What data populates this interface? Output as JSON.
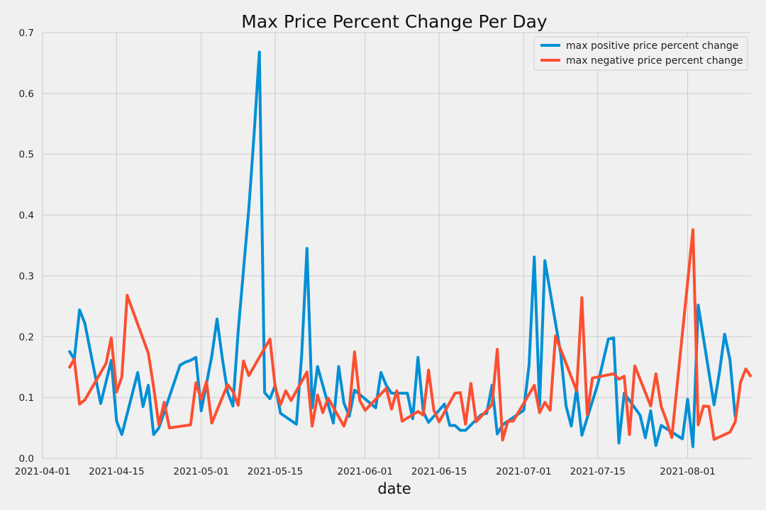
{
  "chart_data": {
    "type": "line",
    "title": "Max Price Percent Change Per Day",
    "xlabel": "date",
    "ylabel": "",
    "xlim": [
      "2021-04-01",
      "2021-08-13"
    ],
    "ylim": [
      0,
      0.7
    ],
    "x_ticks": [
      "2021-04-01",
      "2021-04-15",
      "2021-05-01",
      "2021-05-15",
      "2021-06-01",
      "2021-06-15",
      "2021-07-01",
      "2021-07-15",
      "2021-08-01"
    ],
    "y_ticks": [
      0.0,
      0.1,
      0.2,
      0.3,
      0.4,
      0.5,
      0.6,
      0.7
    ],
    "y_tick_labels": [
      "0.0",
      "0.1",
      "0.2",
      "0.3",
      "0.4",
      "0.5",
      "0.6",
      "0.7"
    ],
    "grid": true,
    "legend_position": "top-right",
    "series": [
      {
        "name": "max positive price percent change",
        "color": "#008fd5",
        "points": [
          [
            "2021-04-06",
            0.177
          ],
          [
            "2021-04-07",
            0.163
          ],
          [
            "2021-04-08",
            0.244
          ],
          [
            "2021-04-09",
            0.222
          ],
          [
            "2021-04-12",
            0.09
          ],
          [
            "2021-04-14",
            0.161
          ],
          [
            "2021-04-15",
            0.061
          ],
          [
            "2021-04-16",
            0.039
          ],
          [
            "2021-04-19",
            0.141
          ],
          [
            "2021-04-20",
            0.085
          ],
          [
            "2021-04-21",
            0.12
          ],
          [
            "2021-04-22",
            0.039
          ],
          [
            "2021-04-23",
            0.05
          ],
          [
            "2021-04-27",
            0.153
          ],
          [
            "2021-04-28",
            0.158
          ],
          [
            "2021-04-29",
            0.161
          ],
          [
            "2021-04-30",
            0.166
          ],
          [
            "2021-05-01",
            0.078
          ],
          [
            "2021-05-03",
            0.168
          ],
          [
            "2021-05-04",
            0.229
          ],
          [
            "2021-05-05",
            0.164
          ],
          [
            "2021-05-06",
            0.109
          ],
          [
            "2021-05-07",
            0.086
          ],
          [
            "2021-05-08",
            0.209
          ],
          [
            "2021-05-10",
            0.41
          ],
          [
            "2021-05-11",
            0.532
          ],
          [
            "2021-05-12",
            0.668
          ],
          [
            "2021-05-13",
            0.108
          ],
          [
            "2021-05-14",
            0.098
          ],
          [
            "2021-05-15",
            0.12
          ],
          [
            "2021-05-16",
            0.074
          ],
          [
            "2021-05-19",
            0.056
          ],
          [
            "2021-05-20",
            0.169
          ],
          [
            "2021-05-21",
            0.345
          ],
          [
            "2021-05-22",
            0.083
          ],
          [
            "2021-05-23",
            0.151
          ],
          [
            "2021-05-26",
            0.058
          ],
          [
            "2021-05-27",
            0.151
          ],
          [
            "2021-05-28",
            0.091
          ],
          [
            "2021-05-29",
            0.069
          ],
          [
            "2021-05-30",
            0.112
          ],
          [
            "2021-06-03",
            0.083
          ],
          [
            "2021-06-04",
            0.141
          ],
          [
            "2021-06-05",
            0.12
          ],
          [
            "2021-06-06",
            0.107
          ],
          [
            "2021-06-09",
            0.107
          ],
          [
            "2021-06-10",
            0.065
          ],
          [
            "2021-06-11",
            0.166
          ],
          [
            "2021-06-12",
            0.076
          ],
          [
            "2021-06-13",
            0.059
          ],
          [
            "2021-06-16",
            0.089
          ],
          [
            "2021-06-17",
            0.054
          ],
          [
            "2021-06-18",
            0.054
          ],
          [
            "2021-06-19",
            0.046
          ],
          [
            "2021-06-20",
            0.046
          ],
          [
            "2021-06-23",
            0.072
          ],
          [
            "2021-06-24",
            0.074
          ],
          [
            "2021-06-25",
            0.12
          ],
          [
            "2021-06-26",
            0.04
          ],
          [
            "2021-06-27",
            0.055
          ],
          [
            "2021-07-01",
            0.079
          ],
          [
            "2021-07-02",
            0.153
          ],
          [
            "2021-07-03",
            0.331
          ],
          [
            "2021-07-04",
            0.087
          ],
          [
            "2021-07-05",
            0.325
          ],
          [
            "2021-07-08",
            0.172
          ],
          [
            "2021-07-09",
            0.086
          ],
          [
            "2021-07-10",
            0.053
          ],
          [
            "2021-07-11",
            0.115
          ],
          [
            "2021-07-12",
            0.038
          ],
          [
            "2021-07-15",
            0.122
          ],
          [
            "2021-07-17",
            0.196
          ],
          [
            "2021-07-18",
            0.198
          ],
          [
            "2021-07-19",
            0.025
          ],
          [
            "2021-07-20",
            0.107
          ],
          [
            "2021-07-23",
            0.071
          ],
          [
            "2021-07-24",
            0.034
          ],
          [
            "2021-07-25",
            0.078
          ],
          [
            "2021-07-26",
            0.021
          ],
          [
            "2021-07-27",
            0.054
          ],
          [
            "2021-07-31",
            0.032
          ],
          [
            "2021-08-01",
            0.097
          ],
          [
            "2021-08-02",
            0.019
          ],
          [
            "2021-08-03",
            0.252
          ],
          [
            "2021-08-06",
            0.088
          ],
          [
            "2021-08-07",
            0.141
          ],
          [
            "2021-08-08",
            0.204
          ],
          [
            "2021-08-09",
            0.162
          ],
          [
            "2021-08-10",
            0.068
          ]
        ]
      },
      {
        "name": "max negative price percent change",
        "color": "#fc4f30",
        "points": [
          [
            "2021-04-06",
            0.148
          ],
          [
            "2021-04-07",
            0.163
          ],
          [
            "2021-04-08",
            0.089
          ],
          [
            "2021-04-09",
            0.096
          ],
          [
            "2021-04-13",
            0.156
          ],
          [
            "2021-04-14",
            0.198
          ],
          [
            "2021-04-15",
            0.109
          ],
          [
            "2021-04-16",
            0.134
          ],
          [
            "2021-04-17",
            0.268
          ],
          [
            "2021-04-21",
            0.173
          ],
          [
            "2021-04-22",
            0.117
          ],
          [
            "2021-04-23",
            0.055
          ],
          [
            "2021-04-24",
            0.092
          ],
          [
            "2021-04-25",
            0.05
          ],
          [
            "2021-04-29",
            0.055
          ],
          [
            "2021-04-30",
            0.124
          ],
          [
            "2021-05-01",
            0.097
          ],
          [
            "2021-05-02",
            0.126
          ],
          [
            "2021-05-03",
            0.058
          ],
          [
            "2021-05-06",
            0.121
          ],
          [
            "2021-05-07",
            0.11
          ],
          [
            "2021-05-08",
            0.087
          ],
          [
            "2021-05-09",
            0.16
          ],
          [
            "2021-05-10",
            0.136
          ],
          [
            "2021-05-14",
            0.196
          ],
          [
            "2021-05-15",
            0.117
          ],
          [
            "2021-05-16",
            0.088
          ],
          [
            "2021-05-17",
            0.111
          ],
          [
            "2021-05-18",
            0.095
          ],
          [
            "2021-05-21",
            0.142
          ],
          [
            "2021-05-22",
            0.053
          ],
          [
            "2021-05-23",
            0.104
          ],
          [
            "2021-05-24",
            0.075
          ],
          [
            "2021-05-25",
            0.099
          ],
          [
            "2021-05-28",
            0.053
          ],
          [
            "2021-05-29",
            0.08
          ],
          [
            "2021-05-30",
            0.175
          ],
          [
            "2021-05-31",
            0.095
          ],
          [
            "2021-06-01",
            0.079
          ],
          [
            "2021-06-05",
            0.115
          ],
          [
            "2021-06-06",
            0.081
          ],
          [
            "2021-06-07",
            0.111
          ],
          [
            "2021-06-08",
            0.061
          ],
          [
            "2021-06-11",
            0.077
          ],
          [
            "2021-06-12",
            0.071
          ],
          [
            "2021-06-13",
            0.145
          ],
          [
            "2021-06-14",
            0.079
          ],
          [
            "2021-06-15",
            0.06
          ],
          [
            "2021-06-18",
            0.107
          ],
          [
            "2021-06-19",
            0.108
          ],
          [
            "2021-06-20",
            0.056
          ],
          [
            "2021-06-21",
            0.123
          ],
          [
            "2021-06-22",
            0.06
          ],
          [
            "2021-06-25",
            0.088
          ],
          [
            "2021-06-26",
            0.179
          ],
          [
            "2021-06-27",
            0.03
          ],
          [
            "2021-06-28",
            0.061
          ],
          [
            "2021-06-29",
            0.061
          ],
          [
            "2021-07-03",
            0.12
          ],
          [
            "2021-07-04",
            0.075
          ],
          [
            "2021-07-05",
            0.092
          ],
          [
            "2021-07-06",
            0.079
          ],
          [
            "2021-07-07",
            0.201
          ],
          [
            "2021-07-11",
            0.111
          ],
          [
            "2021-07-12",
            0.264
          ],
          [
            "2021-07-13",
            0.072
          ],
          [
            "2021-07-14",
            0.132
          ],
          [
            "2021-07-18",
            0.139
          ],
          [
            "2021-07-19",
            0.13
          ],
          [
            "2021-07-20",
            0.135
          ],
          [
            "2021-07-21",
            0.039
          ],
          [
            "2021-07-22",
            0.152
          ],
          [
            "2021-07-25",
            0.086
          ],
          [
            "2021-07-26",
            0.139
          ],
          [
            "2021-07-27",
            0.085
          ],
          [
            "2021-07-28",
            0.062
          ],
          [
            "2021-07-29",
            0.034
          ],
          [
            "2021-08-02",
            0.376
          ],
          [
            "2021-08-03",
            0.055
          ],
          [
            "2021-08-04",
            0.086
          ],
          [
            "2021-08-05",
            0.085
          ],
          [
            "2021-08-06",
            0.031
          ],
          [
            "2021-08-09",
            0.043
          ],
          [
            "2021-08-10",
            0.06
          ],
          [
            "2021-08-11",
            0.125
          ],
          [
            "2021-08-12",
            0.147
          ],
          [
            "2021-08-13",
            0.134
          ]
        ]
      }
    ]
  }
}
